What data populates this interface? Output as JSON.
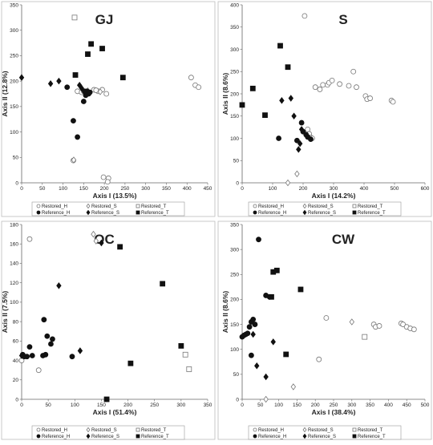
{
  "chart_data": [
    {
      "type": "scatter",
      "title": "GJ",
      "xlabel": "Axis I (13.5%)",
      "ylabel": "Axis II (12.8%)",
      "xlim": [
        0,
        450
      ],
      "ylim": [
        0,
        350
      ],
      "xticks": [
        0,
        50,
        100,
        150,
        200,
        250,
        300,
        350,
        400,
        450
      ],
      "yticks": [
        0,
        50,
        100,
        150,
        200,
        250,
        300,
        350
      ],
      "series": [
        {
          "name": "Restored_H",
          "points": [
            [
              125,
              44
            ],
            [
              135,
              180
            ],
            [
              145,
              178
            ],
            [
              150,
              180
            ],
            [
              155,
              178
            ],
            [
              175,
              183
            ],
            [
              185,
              180
            ],
            [
              195,
              183
            ],
            [
              205,
              175
            ],
            [
              180,
              182
            ],
            [
              198,
              11
            ],
            [
              210,
              9
            ],
            [
              208,
              2
            ],
            [
              410,
              207
            ],
            [
              420,
              192
            ],
            [
              428,
              188
            ]
          ]
        },
        {
          "name": "Restored_S",
          "points": [
            [
              126,
              45
            ],
            [
              160,
              181
            ],
            [
              190,
              179
            ]
          ]
        },
        {
          "name": "Restored_T",
          "points": [
            [
              128,
              325
            ]
          ]
        },
        {
          "name": "Reference_H",
          "points": [
            [
              110,
              188
            ],
            [
              125,
              122
            ],
            [
              135,
              90
            ],
            [
              150,
              160
            ],
            [
              155,
              172
            ],
            [
              158,
              180
            ],
            [
              162,
              175
            ],
            [
              165,
              178
            ],
            [
              152,
              180
            ]
          ]
        },
        {
          "name": "Reference_S",
          "points": [
            [
              0,
              207
            ],
            [
              70,
              195
            ],
            [
              90,
              200
            ],
            [
              140,
              192
            ],
            [
              145,
              186
            ]
          ]
        },
        {
          "name": "Reference_T",
          "points": [
            [
              130,
              212
            ],
            [
              160,
              253
            ],
            [
              168,
              273
            ],
            [
              195,
              264
            ],
            [
              245,
              207
            ]
          ]
        }
      ]
    },
    {
      "type": "scatter",
      "title": "S",
      "xlabel": "Axis I (14.2%)",
      "ylabel": "Axis II (8.6%)",
      "xlim": [
        0,
        600
      ],
      "ylim": [
        0,
        400
      ],
      "xticks": [
        0,
        100,
        200,
        300,
        400,
        500,
        600
      ],
      "yticks": [
        0,
        50,
        100,
        150,
        200,
        250,
        300,
        350,
        400
      ],
      "series": [
        {
          "name": "Restored_H",
          "points": [
            [
              215,
              120
            ],
            [
              220,
              110
            ],
            [
              225,
              102
            ],
            [
              230,
              100
            ],
            [
              240,
              215
            ],
            [
              255,
              210
            ],
            [
              265,
              220
            ],
            [
              280,
              220
            ],
            [
              285,
              225
            ],
            [
              295,
              230
            ],
            [
              320,
              222
            ],
            [
              350,
              218
            ],
            [
              365,
              250
            ],
            [
              375,
              215
            ],
            [
              405,
              195
            ],
            [
              410,
              188
            ],
            [
              420,
              190
            ],
            [
              490,
              185
            ],
            [
              495,
              182
            ],
            [
              205,
              375
            ]
          ]
        },
        {
          "name": "Restored_S",
          "points": [
            [
              150,
              0
            ],
            [
              180,
              20
            ]
          ]
        },
        {
          "name": "Restored_T",
          "points": []
        },
        {
          "name": "Reference_H",
          "points": [
            [
              120,
              100
            ],
            [
              180,
              95
            ],
            [
              195,
              135
            ],
            [
              200,
              115
            ],
            [
              210,
              108
            ],
            [
              215,
              103
            ],
            [
              225,
              98
            ]
          ]
        },
        {
          "name": "Reference_S",
          "points": [
            [
              130,
              185
            ],
            [
              160,
              190
            ],
            [
              170,
              150
            ],
            [
              185,
              75
            ],
            [
              190,
              88
            ],
            [
              195,
              120
            ]
          ]
        },
        {
          "name": "Reference_T",
          "points": [
            [
              0,
              175
            ],
            [
              35,
              212
            ],
            [
              75,
              152
            ],
            [
              125,
              308
            ],
            [
              150,
              260
            ]
          ]
        }
      ]
    },
    {
      "type": "scatter",
      "title": "OC",
      "xlabel": "Axis I (51.4%)",
      "ylabel": "Axis II (7.5%)",
      "xlim": [
        0,
        350
      ],
      "ylim": [
        0,
        180
      ],
      "xticks": [
        0,
        50,
        100,
        150,
        200,
        250,
        300,
        350
      ],
      "yticks": [
        0,
        20,
        40,
        60,
        80,
        100,
        120,
        140,
        160,
        180
      ],
      "series": [
        {
          "name": "Restored_H",
          "points": [
            [
              0,
              40
            ],
            [
              15,
              165
            ],
            [
              32,
              30
            ]
          ]
        },
        {
          "name": "Restored_S",
          "points": [
            [
              135,
              170
            ],
            [
              140,
              163
            ]
          ]
        },
        {
          "name": "Restored_T",
          "points": [
            [
              308,
              46
            ],
            [
              315,
              31
            ]
          ]
        },
        {
          "name": "Reference_H",
          "points": [
            [
              2,
              46
            ],
            [
              5,
              44
            ],
            [
              10,
              44
            ],
            [
              15,
              54
            ],
            [
              20,
              45
            ],
            [
              40,
              45
            ],
            [
              42,
              82
            ],
            [
              45,
              46
            ],
            [
              48,
              65
            ],
            [
              55,
              57
            ],
            [
              58,
              62
            ],
            [
              95,
              44
            ]
          ]
        },
        {
          "name": "Reference_S",
          "points": [
            [
              0,
              45
            ],
            [
              70,
              117
            ],
            [
              110,
              50
            ],
            [
              150,
              161
            ]
          ]
        },
        {
          "name": "Reference_T",
          "points": [
            [
              160,
              0
            ],
            [
              185,
              157
            ],
            [
              205,
              37
            ],
            [
              265,
              119
            ],
            [
              300,
              55
            ]
          ]
        }
      ]
    },
    {
      "type": "scatter",
      "title": "CW",
      "xlabel": "Axis I (38.4%)",
      "ylabel": "Axis II (8.6%)",
      "xlim": [
        0,
        500
      ],
      "ylim": [
        0,
        350
      ],
      "xticks": [
        0,
        50,
        100,
        150,
        200,
        250,
        300,
        350,
        400,
        450,
        500
      ],
      "yticks": [
        0,
        50,
        100,
        150,
        200,
        250,
        300,
        350
      ],
      "series": [
        {
          "name": "Restored_H",
          "points": [
            [
              210,
              80
            ],
            [
              230,
              163
            ],
            [
              360,
              150
            ],
            [
              365,
              145
            ],
            [
              375,
              147
            ],
            [
              435,
              152
            ],
            [
              440,
              150
            ],
            [
              450,
              145
            ],
            [
              460,
              142
            ],
            [
              470,
              140
            ]
          ]
        },
        {
          "name": "Restored_S",
          "points": [
            [
              65,
              0
            ],
            [
              140,
              25
            ],
            [
              300,
              155
            ]
          ]
        },
        {
          "name": "Restored_T",
          "points": [
            [
              335,
              125
            ]
          ]
        },
        {
          "name": "Reference_H",
          "points": [
            [
              0,
              125
            ],
            [
              5,
              128
            ],
            [
              10,
              130
            ],
            [
              15,
              132
            ],
            [
              20,
              145
            ],
            [
              25,
              155
            ],
            [
              30,
              160
            ],
            [
              35,
              150
            ],
            [
              25,
              88
            ],
            [
              45,
              320
            ],
            [
              65,
              208
            ],
            [
              75,
              205
            ]
          ]
        },
        {
          "name": "Reference_S",
          "points": [
            [
              30,
              130
            ],
            [
              40,
              67
            ],
            [
              65,
              45
            ],
            [
              85,
              115
            ]
          ]
        },
        {
          "name": "Reference_T",
          "points": [
            [
              80,
              205
            ],
            [
              85,
              255
            ],
            [
              95,
              258
            ],
            [
              120,
              90
            ],
            [
              160,
              220
            ]
          ]
        }
      ]
    }
  ],
  "legend": {
    "row1": [
      "Restored_H",
      "Restored_S",
      "Restored_T"
    ],
    "row2": [
      "Reference_H",
      "Reference_S",
      "Reference_T"
    ]
  }
}
